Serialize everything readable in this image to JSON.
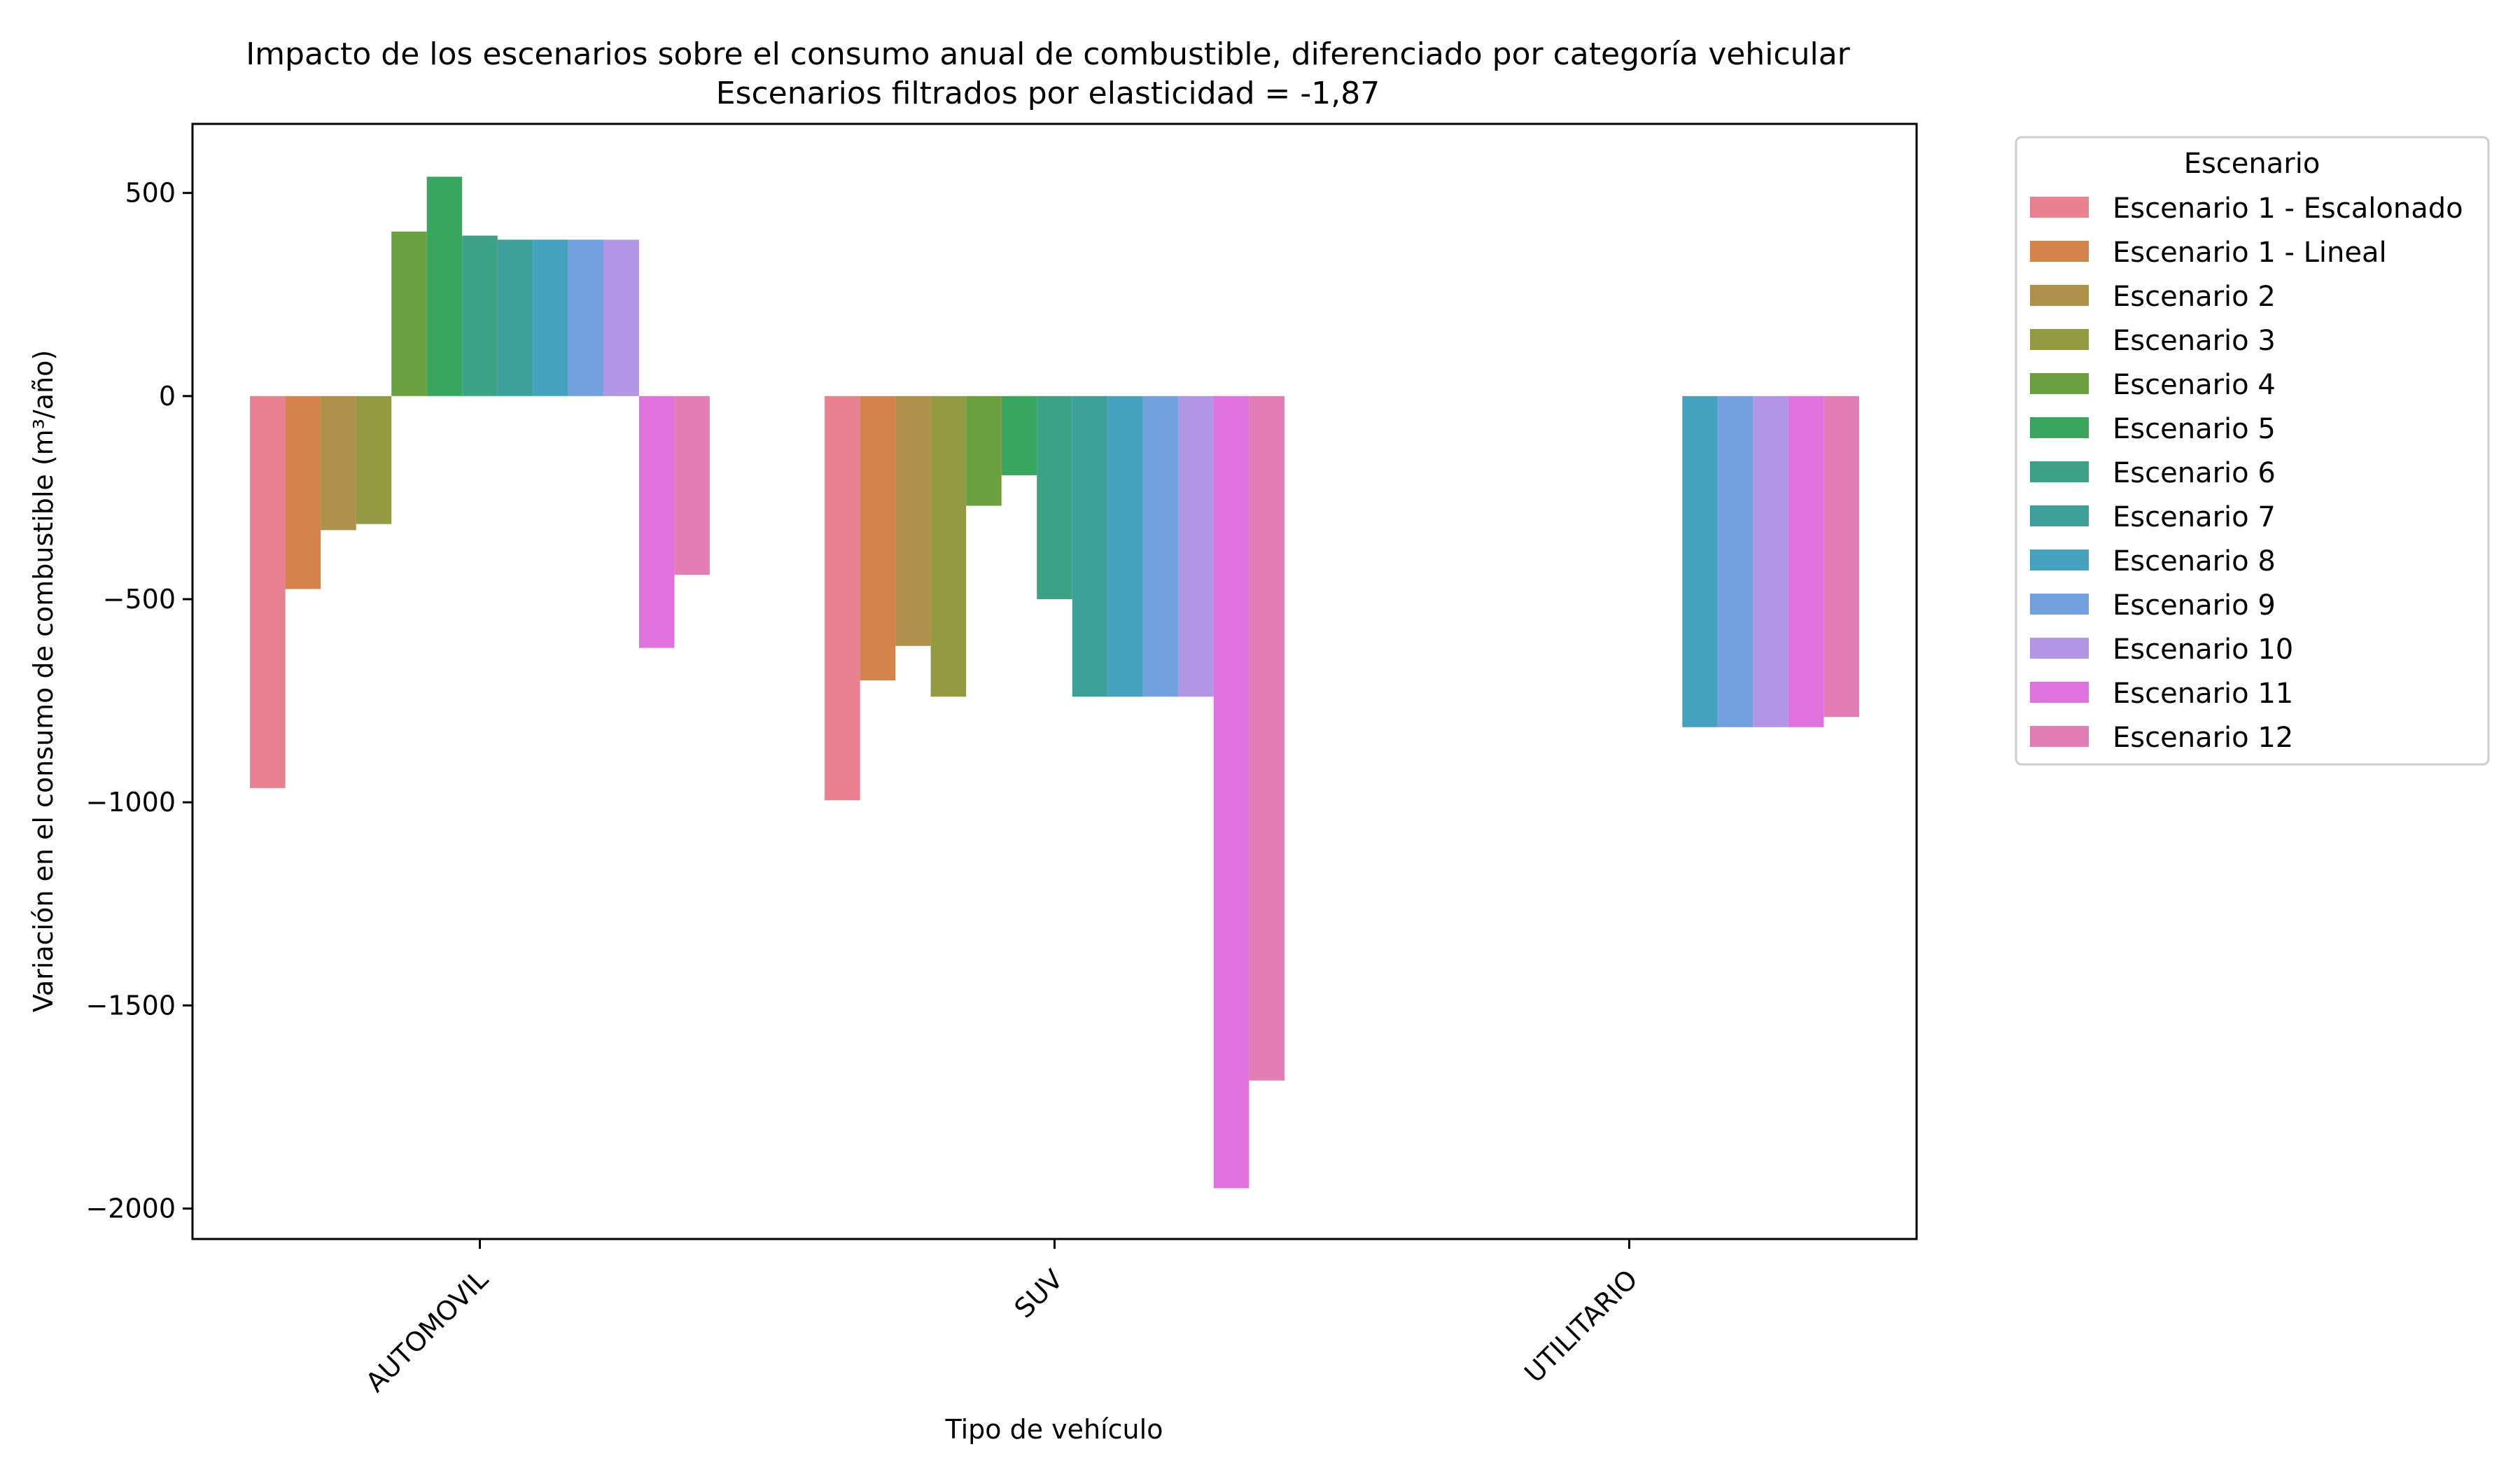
{
  "chart_data": {
    "type": "bar",
    "title": "Impacto de los escenarios sobre el consumo anual de combustible, diferenciado por categoría vehicular",
    "subtitle": "Escenarios filtrados por elasticidad = -1,87",
    "xlabel": "Tipo de vehículo",
    "ylabel": "Variación en el consumo de combustible (m³/año)",
    "categories": [
      "AUTOMOVIL",
      "SUV",
      "UTILITARIO"
    ],
    "ylim": [
      -2075,
      670
    ],
    "yticks": [
      500,
      0,
      -500,
      -1000,
      -1500,
      -2000
    ],
    "ytick_labels": [
      "500",
      "0",
      "−500",
      "−1000",
      "−1500",
      "−2000"
    ],
    "grid": false,
    "legend": {
      "title": "Escenario",
      "placement": "outside-right-top"
    },
    "series": [
      {
        "name": "Escenario 1 - Escalonado",
        "color": "#e8808f",
        "values": [
          -965,
          -995,
          null
        ]
      },
      {
        "name": "Escenario 1 - Lineal",
        "color": "#d4844a",
        "values": [
          -475,
          -700,
          null
        ]
      },
      {
        "name": "Escenario 2",
        "color": "#ad904a",
        "values": [
          -330,
          -615,
          null
        ]
      },
      {
        "name": "Escenario 3",
        "color": "#939a41",
        "values": [
          -315,
          -740,
          null
        ]
      },
      {
        "name": "Escenario 4",
        "color": "#6ba03e",
        "values": [
          405,
          -270,
          null
        ]
      },
      {
        "name": "Escenario 5",
        "color": "#3aa55f",
        "values": [
          540,
          -195,
          null
        ]
      },
      {
        "name": "Escenario 6",
        "color": "#3ba286",
        "values": [
          395,
          -500,
          null
        ]
      },
      {
        "name": "Escenario 7",
        "color": "#3da09b",
        "values": [
          385,
          -740,
          null
        ]
      },
      {
        "name": "Escenario 8",
        "color": "#45a2bf",
        "values": [
          385,
          -740,
          -815
        ]
      },
      {
        "name": "Escenario 9",
        "color": "#73a1e0",
        "values": [
          385,
          -740,
          -815
        ]
      },
      {
        "name": "Escenario 10",
        "color": "#b395e6",
        "values": [
          385,
          -740,
          -815
        ]
      },
      {
        "name": "Escenario 11",
        "color": "#e072e0",
        "values": [
          -620,
          -1950,
          -815
        ]
      },
      {
        "name": "Escenario 12",
        "color": "#e27db5",
        "values": [
          -440,
          -1685,
          -790
        ]
      }
    ]
  }
}
